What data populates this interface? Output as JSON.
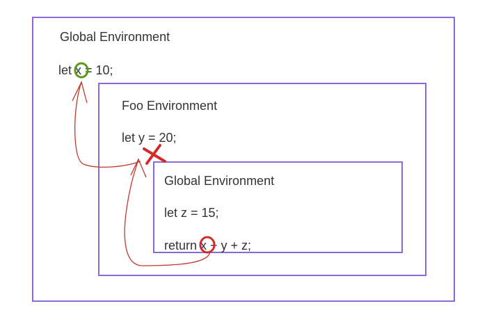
{
  "diagram": {
    "outer_env": {
      "title": "Global Environment",
      "code": "let x = 10;"
    },
    "middle_env": {
      "title": "Foo Environment",
      "code": "let y = 20;"
    },
    "inner_env": {
      "title": "Global Environment",
      "code_line_1": "let z = 15;",
      "code_line_2": "return x + y + z;"
    },
    "colors": {
      "box_border": "#8a6ad8",
      "found_marker": "#5a9a1a",
      "lookup_marker": "#d42a2a",
      "arrow": "#c0392b"
    }
  }
}
